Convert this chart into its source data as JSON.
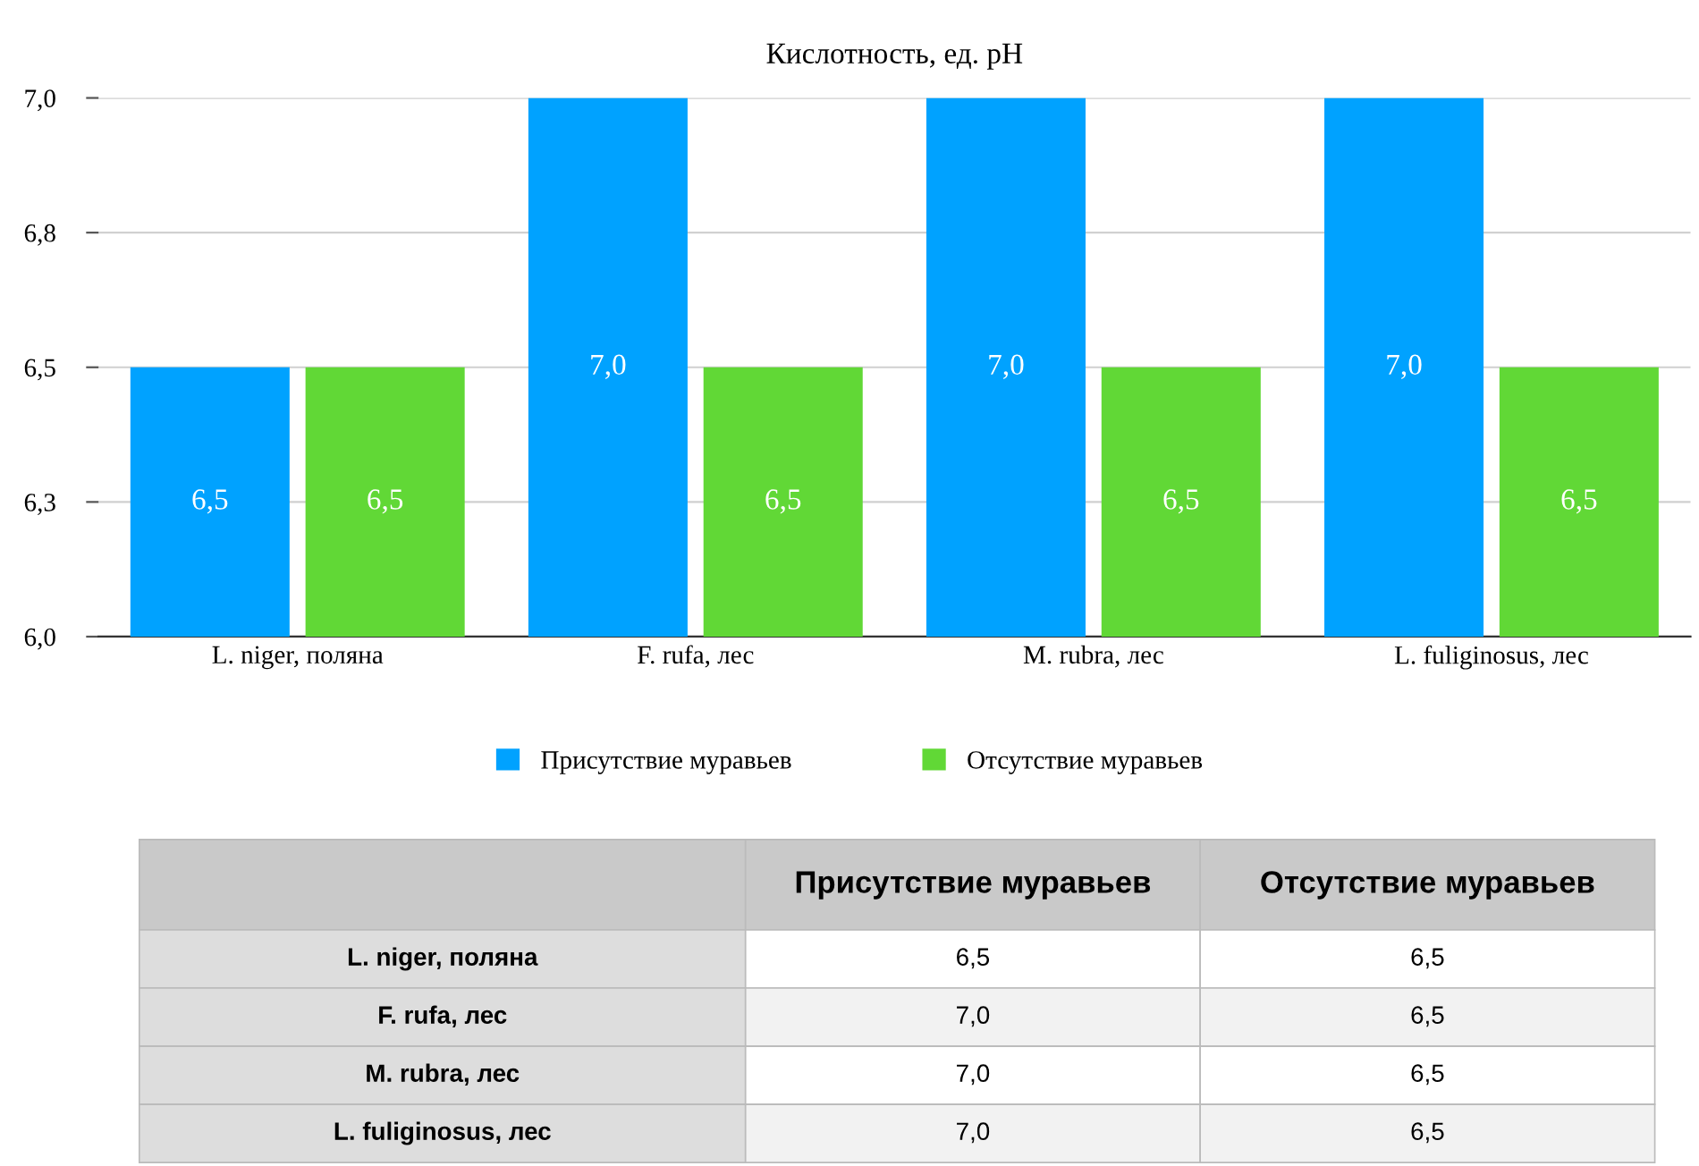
{
  "chart_data": {
    "type": "bar",
    "title": "Кислотность, ед. pH",
    "categories": [
      "L. niger, поляна",
      "F. rufa, лес",
      "M. rubra, лес",
      "L. fuliginosus, лес"
    ],
    "series": [
      {
        "name": "Присутствие муравьев",
        "color": "#00a2ff",
        "values": [
          6.5,
          7.0,
          7.0,
          7.0
        ],
        "value_labels": [
          "6,5",
          "7,0",
          "7,0",
          "7,0"
        ]
      },
      {
        "name": "Отсутствие муравьев",
        "color": "#61d836",
        "values": [
          6.5,
          6.5,
          6.5,
          6.5
        ],
        "value_labels": [
          "6,5",
          "6,5",
          "6,5",
          "6,5"
        ]
      }
    ],
    "ylim": [
      6.0,
      7.0
    ],
    "yticks": [
      {
        "value": 6.0,
        "label": "6,0"
      },
      {
        "value": 6.25,
        "label": "6,3"
      },
      {
        "value": 6.5,
        "label": "6,5"
      },
      {
        "value": 6.75,
        "label": "6,8"
      },
      {
        "value": 7.0,
        "label": "7,0"
      }
    ],
    "grid": "y",
    "legend": "bottom"
  }
}
